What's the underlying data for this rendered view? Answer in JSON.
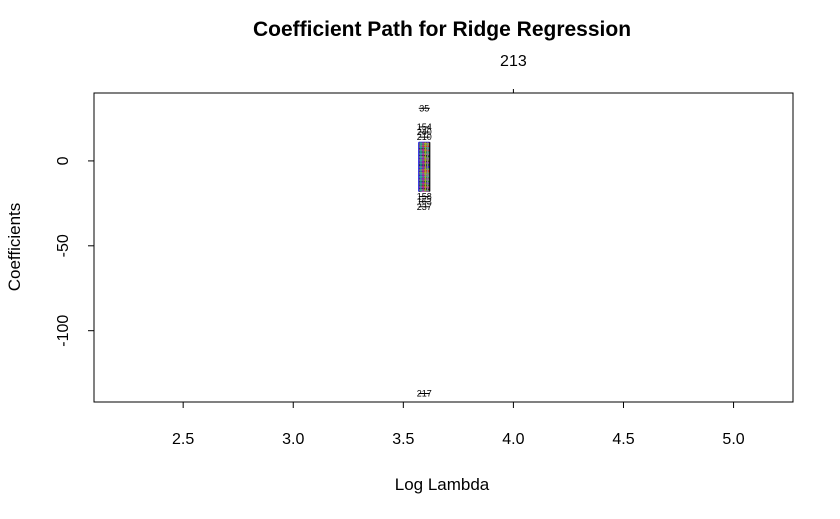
{
  "chart_data": {
    "type": "line",
    "title": "Coefficient Path for Ridge Regression",
    "xlabel": "Log Lambda",
    "ylabel": "Coefficients",
    "xlim": [
      2.095,
      5.27
    ],
    "ylim": [
      -142,
      40
    ],
    "x_ticks": [
      2.5,
      3.0,
      3.5,
      4.0,
      4.5,
      5.0
    ],
    "x_tick_labels": [
      "2.5",
      "3.0",
      "3.5",
      "4.0",
      "4.5",
      "5.0"
    ],
    "y_ticks": [
      0,
      -50,
      -100
    ],
    "y_tick_labels": [
      "0",
      "-50",
      "-100"
    ],
    "top_axis": {
      "ticks": [
        4.0
      ],
      "tick_labels": [
        "213"
      ]
    },
    "grid": false,
    "lambda_range": [
      3.57,
      3.62
    ],
    "series": [
      {
        "name": "35",
        "values": [
          31
        ]
      },
      {
        "name": "154",
        "values": [
          20
        ]
      },
      {
        "name": "240",
        "values": [
          17
        ]
      },
      {
        "name": "210",
        "values": [
          14
        ]
      },
      {
        "name": "217",
        "values": [
          -137
        ]
      },
      {
        "name": "237",
        "values": [
          -27
        ]
      },
      {
        "name": "163",
        "values": [
          -24
        ]
      },
      {
        "name": "158",
        "values": [
          -21
        ]
      }
    ],
    "cluster_min": -18,
    "cluster_max": 11
  }
}
